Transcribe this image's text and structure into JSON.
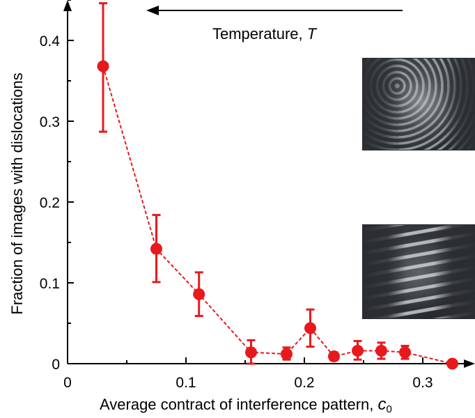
{
  "chart_data": {
    "type": "scatter",
    "xlabel": "Average contract of interference pattern, ",
    "xlabel_symbol": "c",
    "xlabel_subscript": "0",
    "ylabel": "Fraction of images with dislocations",
    "xlim": [
      0,
      0.34
    ],
    "ylim": [
      0,
      0.45
    ],
    "x_ticks": [
      0,
      0.1,
      0.2,
      0.3
    ],
    "x_tick_labels": [
      "0",
      "0.1",
      "0.2",
      "0.3"
    ],
    "y_ticks": [
      0,
      0.1,
      0.2,
      0.3,
      0.4
    ],
    "y_tick_labels": [
      "0",
      "0.1",
      "0.2",
      "0.3",
      "0.4"
    ],
    "grid": false,
    "marker_color": "#e8191c",
    "line_style": "dashed",
    "annotation": {
      "text": "Temperature, ",
      "symbol": "T",
      "arrow_direction": "left"
    },
    "series": [
      {
        "x": [
          0.03,
          0.075,
          0.111,
          0.155,
          0.185,
          0.205,
          0.225,
          0.245,
          0.265,
          0.285,
          0.325
        ],
        "y": [
          0.368,
          0.142,
          0.086,
          0.014,
          0.012,
          0.044,
          0.009,
          0.016,
          0.016,
          0.014,
          0.0
        ],
        "err_low": [
          0.081,
          0.041,
          0.027,
          0.014,
          0.007,
          0.023,
          0.005,
          0.011,
          0.01,
          0.008,
          0.0
        ],
        "err_high": [
          0.078,
          0.042,
          0.027,
          0.015,
          0.008,
          0.023,
          0.005,
          0.012,
          0.01,
          0.008,
          0.0
        ]
      }
    ]
  }
}
